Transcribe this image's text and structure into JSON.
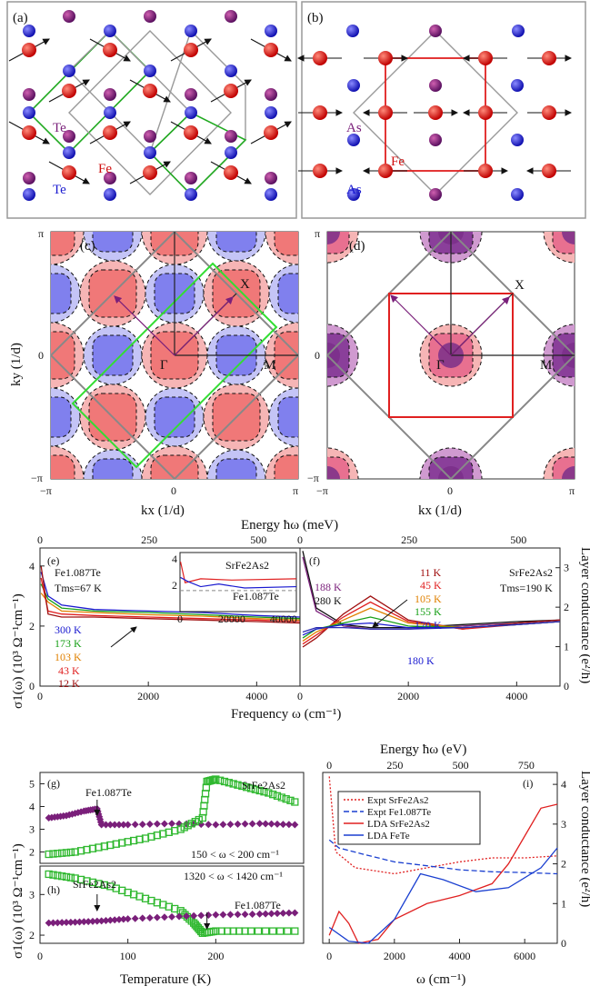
{
  "panels": {
    "a": {
      "label": "(a)",
      "atom_labels": [
        "Te",
        "Fe",
        "Te"
      ]
    },
    "b": {
      "label": "(b)",
      "atom_labels": [
        "As",
        "Fe",
        "As"
      ]
    },
    "c": {
      "label": "(c)",
      "points": [
        "Γ",
        "X",
        "M"
      ]
    },
    "d": {
      "label": "(d)",
      "points": [
        "Γ",
        "X",
        "M"
      ]
    },
    "e": {
      "label": "(e)",
      "compound": "Fe1.087Te",
      "tms": "Tms=67 K",
      "temps": [
        "300 K",
        "173 K",
        "103 K",
        "43 K",
        "12 K"
      ],
      "inset": {
        "labels": [
          "SrFe2As2",
          "Fe1.087Te"
        ],
        "xticks": [
          "0",
          "20000",
          "40000"
        ],
        "yticks": [
          "2",
          "4"
        ]
      }
    },
    "f": {
      "label": "(f)",
      "compound": "SrFe2As2",
      "tms": "Tms=190 K",
      "temps_left": [
        "188 K",
        "280 K"
      ],
      "temps_right": [
        "11 K",
        "45 K",
        "105 K",
        "155 K",
        "170 K"
      ],
      "temps_bottom": "180 K"
    },
    "g": {
      "label": "(g)",
      "labels": [
        "Fe1.087Te",
        "SrFe2As2"
      ],
      "range": "150 < ω < 200 cm⁻¹"
    },
    "h": {
      "label": "(h)",
      "labels": [
        "SrFe2As2",
        "Fe1.087Te"
      ],
      "range": "1320 < ω < 1420 cm⁻¹"
    },
    "i": {
      "label": "(i)",
      "legend": [
        "Expt SrFe2As2",
        "Expt Fe1.087Te",
        "LDA SrFe2As2",
        "LDA FeTe"
      ]
    }
  },
  "axes": {
    "ky_label": "ky (1/d)",
    "kx_label": "kx (1/d)",
    "pi": "π",
    "neg_pi": "−π",
    "zero": "0",
    "energy_mev": "Energy ħω (meV)",
    "energy_ev": "Energy ħω (eV)",
    "sigma": "σ1(ω) (10³ Ω⁻¹cm⁻¹)",
    "layer_cond": "Layer conductance (e²/h)",
    "frequency": "Frequency ω (cm⁻¹)",
    "temperature": "Temperature (K)",
    "omega": "ω (cm⁻¹)"
  },
  "chart_data": [
    {
      "type": "line",
      "panel": "e",
      "xlabel": "Frequency ω (cm⁻¹)",
      "ylabel": "σ1(ω) (10³ Ω⁻¹cm⁻¹)",
      "xlim": [
        0,
        4800
      ],
      "ylim": [
        0,
        4.6
      ],
      "x_ticks": [
        0,
        2000,
        4000
      ],
      "y_ticks": [
        0,
        2,
        4
      ],
      "top_ticks_mev": [
        0,
        250,
        500
      ],
      "series": [
        {
          "name": "300 K",
          "x": [
            20,
            150,
            400,
            1000,
            2000,
            3000,
            4000,
            4800
          ],
          "y": [
            3.8,
            3.0,
            2.7,
            2.55,
            2.5,
            2.45,
            2.35,
            2.3
          ]
        },
        {
          "name": "173 K",
          "x": [
            20,
            150,
            400,
            1000,
            2000,
            3000,
            4000,
            4800
          ],
          "y": [
            3.4,
            2.9,
            2.6,
            2.5,
            2.45,
            2.38,
            2.3,
            2.25
          ]
        },
        {
          "name": "103 K",
          "x": [
            20,
            150,
            400,
            1000,
            2000,
            3000,
            4000,
            4800
          ],
          "y": [
            3.1,
            2.8,
            2.5,
            2.45,
            2.38,
            2.33,
            2.25,
            2.2
          ]
        },
        {
          "name": "43 K",
          "x": [
            20,
            150,
            400,
            1000,
            2000,
            3000,
            4000,
            4800
          ],
          "y": [
            3.6,
            2.5,
            2.4,
            2.35,
            2.3,
            2.25,
            2.2,
            2.15
          ]
        },
        {
          "name": "12 K",
          "x": [
            20,
            150,
            400,
            1000,
            2000,
            3000,
            4000,
            4800
          ],
          "y": [
            4.0,
            2.4,
            2.3,
            2.3,
            2.25,
            2.2,
            2.15,
            2.1
          ]
        }
      ]
    },
    {
      "type": "line",
      "panel": "f",
      "xlabel": "Frequency ω (cm⁻¹)",
      "ylabel": "Layer conductance (e²/h)",
      "xlim": [
        0,
        4800
      ],
      "ylim": [
        0,
        4.6
      ],
      "x_ticks": [
        0,
        2000,
        4000
      ],
      "y_ticks_right": [
        0,
        1,
        2,
        3
      ],
      "series": [
        {
          "name": "280 K",
          "x": [
            50,
            300,
            800,
            1300,
            2000,
            3000,
            4000,
            4800
          ],
          "y": [
            4.5,
            2.6,
            2.05,
            1.95,
            1.95,
            2.05,
            2.15,
            2.2
          ]
        },
        {
          "name": "188 K",
          "x": [
            50,
            300,
            800,
            1300,
            2000,
            3000,
            4000,
            4800
          ],
          "y": [
            4.3,
            2.5,
            2.0,
            1.9,
            1.9,
            2.0,
            2.1,
            2.2
          ]
        },
        {
          "name": "11 K",
          "x": [
            50,
            300,
            800,
            1300,
            2000,
            3000,
            4000,
            4800
          ],
          "y": [
            1.3,
            1.6,
            2.4,
            3.0,
            2.2,
            1.9,
            2.1,
            2.2
          ]
        },
        {
          "name": "45 K",
          "x": [
            50,
            300,
            800,
            1300,
            2000,
            3000,
            4000,
            4800
          ],
          "y": [
            1.4,
            1.7,
            2.3,
            2.8,
            2.15,
            1.9,
            2.05,
            2.15
          ]
        },
        {
          "name": "105 K",
          "x": [
            50,
            300,
            800,
            1300,
            2000,
            3000,
            4000,
            4800
          ],
          "y": [
            1.5,
            1.8,
            2.2,
            2.6,
            2.1,
            1.95,
            2.05,
            2.15
          ]
        },
        {
          "name": "155 K",
          "x": [
            50,
            300,
            800,
            1300,
            2000,
            3000,
            4000,
            4800
          ],
          "y": [
            1.6,
            1.9,
            2.1,
            2.3,
            2.0,
            1.95,
            2.05,
            2.15
          ]
        },
        {
          "name": "170 K",
          "x": [
            50,
            300,
            800,
            1300,
            2000,
            3000,
            4000,
            4800
          ],
          "y": [
            1.7,
            1.9,
            2.05,
            2.1,
            1.95,
            1.95,
            2.05,
            2.15
          ]
        },
        {
          "name": "180 K",
          "x": [
            50,
            300,
            800,
            1300,
            2000,
            3000,
            4000,
            4800
          ],
          "y": [
            1.8,
            1.95,
            1.95,
            1.9,
            1.9,
            1.95,
            2.05,
            2.15
          ]
        }
      ]
    },
    {
      "type": "scatter",
      "panel": "g",
      "xlim": [
        0,
        300
      ],
      "ylim": [
        1.5,
        5.5
      ],
      "y_ticks": [
        2,
        3,
        4,
        5
      ],
      "series": [
        {
          "name": "Fe1.087Te",
          "x": [
            10,
            30,
            50,
            65,
            70,
            100,
            150,
            200,
            250,
            290
          ],
          "y": [
            3.5,
            3.6,
            3.8,
            3.9,
            3.2,
            3.2,
            3.25,
            3.2,
            3.25,
            3.2
          ]
        },
        {
          "name": "SrFe2As2",
          "x": [
            10,
            40,
            80,
            120,
            160,
            185,
            190,
            200,
            230,
            260,
            290
          ],
          "y": [
            1.9,
            2.0,
            2.3,
            2.6,
            3.0,
            3.5,
            5.1,
            5.2,
            4.9,
            4.6,
            4.2
          ]
        }
      ]
    },
    {
      "type": "scatter",
      "panel": "h",
      "xlabel": "Temperature (K)",
      "xlim": [
        0,
        300
      ],
      "ylim": [
        1.8,
        3.7
      ],
      "x_ticks": [
        0,
        100,
        200
      ],
      "y_ticks": [
        2,
        3
      ],
      "series": [
        {
          "name": "SrFe2As2",
          "x": [
            10,
            40,
            80,
            120,
            160,
            175,
            185,
            200,
            240,
            290
          ],
          "y": [
            3.5,
            3.4,
            3.2,
            2.9,
            2.6,
            2.3,
            2.05,
            2.1,
            2.1,
            2.1
          ]
        },
        {
          "name": "Fe1.087Te",
          "x": [
            10,
            40,
            70,
            100,
            150,
            200,
            250,
            290
          ],
          "y": [
            2.3,
            2.32,
            2.35,
            2.4,
            2.45,
            2.5,
            2.52,
            2.55
          ]
        }
      ]
    },
    {
      "type": "line",
      "panel": "i",
      "xlabel": "ω (cm⁻¹)",
      "ylabel": "Layer conductance (e²/h)",
      "xlim": [
        -200,
        7000
      ],
      "ylim": [
        0,
        4.3
      ],
      "x_ticks": [
        0,
        2000,
        4000,
        6000
      ],
      "y_ticks_right": [
        0,
        1,
        2,
        3,
        4
      ],
      "top_ticks_ev": [
        0,
        250,
        500,
        750
      ],
      "series": [
        {
          "name": "Expt SrFe2As2",
          "x": [
            0,
            200,
            800,
            2000,
            3000,
            4000,
            5000,
            6000,
            7000
          ],
          "y": [
            4.2,
            2.3,
            1.9,
            1.75,
            1.9,
            2.05,
            2.15,
            2.15,
            2.2
          ]
        },
        {
          "name": "Expt Fe1.087Te",
          "x": [
            0,
            300,
            1000,
            2000,
            3000,
            4000,
            5000,
            6000,
            7000
          ],
          "y": [
            2.6,
            2.4,
            2.25,
            2.05,
            1.95,
            1.85,
            1.8,
            1.78,
            1.75
          ]
        },
        {
          "name": "LDA SrFe2As2",
          "x": [
            0,
            300,
            600,
            900,
            1500,
            2000,
            3000,
            4000,
            5000,
            5500,
            6000,
            6500,
            7000
          ],
          "y": [
            0.2,
            0.8,
            0.5,
            0.0,
            0.1,
            0.6,
            1.0,
            1.2,
            1.5,
            2.0,
            2.7,
            3.4,
            3.5
          ]
        },
        {
          "name": "LDA FeTe",
          "x": [
            0,
            600,
            1200,
            2000,
            2800,
            3500,
            4500,
            5500,
            6500,
            7000
          ],
          "y": [
            0.4,
            0.05,
            0.0,
            0.6,
            1.75,
            1.6,
            1.3,
            1.4,
            1.9,
            2.4
          ]
        }
      ]
    }
  ],
  "colors": {
    "fe": "#e02020",
    "te": "#2020e0",
    "as": "#8a2d8a",
    "exp_sr": "#e02020",
    "exp_fe": "#1a3fd0",
    "green": "#2fb82f",
    "purple": "#7a1f7a"
  }
}
